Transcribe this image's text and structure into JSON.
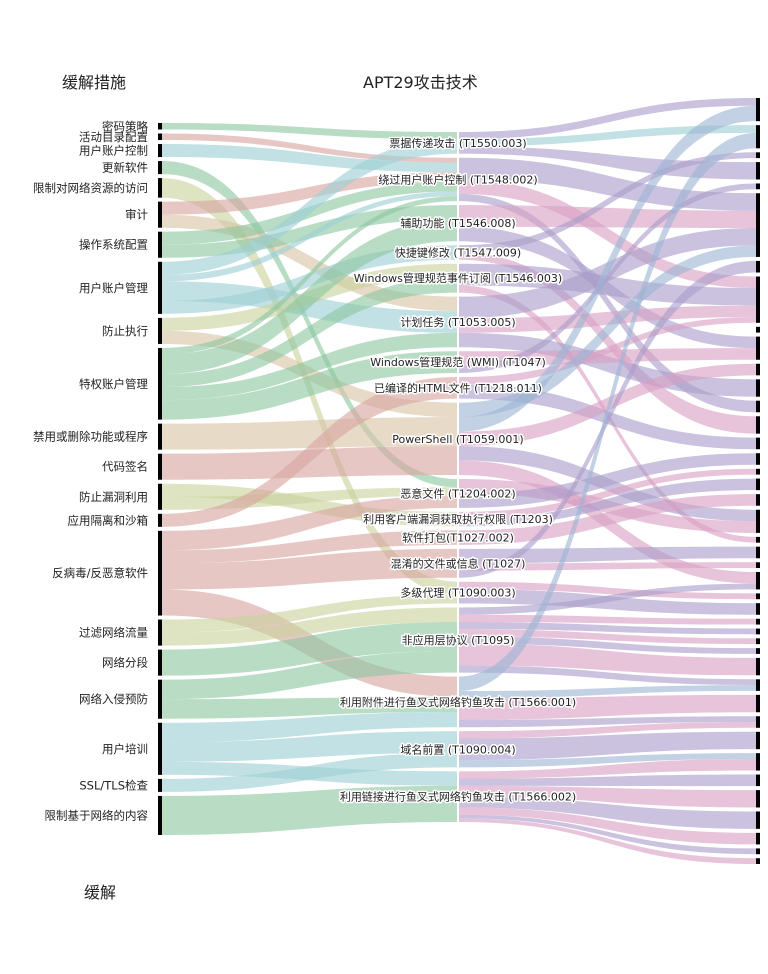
{
  "headers": {
    "mitigations": "缓解措施",
    "techniques": "APT29攻击技术",
    "footer": "缓解"
  },
  "colors": {
    "green": "#8cc7a0",
    "teal": "#9ccfd4",
    "tan": "#d9c4a4",
    "rose": "#d9a4a0",
    "olive": "#c9d29c",
    "purple": "#a99cca",
    "pink": "#d9a0c4",
    "steel": "#9cb4d4",
    "bar": "#000000"
  },
  "mitigations": [
    {
      "label": "密码策略",
      "weight": 1
    },
    {
      "label": "活动目录配置",
      "weight": 1
    },
    {
      "label": "用户账户控制",
      "weight": 2
    },
    {
      "label": "更新软件",
      "weight": 2
    },
    {
      "label": "限制对网络资源的访问",
      "weight": 3
    },
    {
      "label": "审计",
      "weight": 4
    },
    {
      "label": "操作系统配置",
      "weight": 4
    },
    {
      "label": "用户账户管理",
      "weight": 8
    },
    {
      "label": "防止执行",
      "weight": 4
    },
    {
      "label": "特权账户管理",
      "weight": 11
    },
    {
      "label": "禁用或删除功能或程序",
      "weight": 4
    },
    {
      "label": "代码签名",
      "weight": 4
    },
    {
      "label": "防止漏洞利用",
      "weight": 4
    },
    {
      "label": "应用隔离和沙箱",
      "weight": 2
    },
    {
      "label": "反病毒/反恶意软件",
      "weight": 13
    },
    {
      "label": "过滤网络流量",
      "weight": 4
    },
    {
      "label": "网络分段",
      "weight": 4
    },
    {
      "label": "网络入侵预防",
      "weight": 6
    },
    {
      "label": "用户培训",
      "weight": 8
    },
    {
      "label": "SSL/TLS检查",
      "weight": 2
    },
    {
      "label": "限制基于网络的内容",
      "weight": 6
    }
  ],
  "techniques": [
    {
      "label": "票据传递攻击 (T1550.003)",
      "weight": 3
    },
    {
      "label": "绕过用户账户控制 (T1548.002)",
      "weight": 6
    },
    {
      "label": "辅助功能 (T1546.008)",
      "weight": 5
    },
    {
      "label": "快捷键修改 (T1547.009)",
      "weight": 2
    },
    {
      "label": "Windows管理规范事件订阅 (T1546.003)",
      "weight": 4
    },
    {
      "label": "计划任务 (T1053.005)",
      "weight": 7
    },
    {
      "label": "Windows管理规范 (WMI) (T1047)",
      "weight": 3
    },
    {
      "label": "已编译的HTML文件 (T1218.011)",
      "weight": 3
    },
    {
      "label": "PowerShell (T1059.001)",
      "weight": 10
    },
    {
      "label": "恶意文件 (T1204.002)",
      "weight": 4
    },
    {
      "label": "利用客户端漏洞获取执行权限 (T1203)",
      "weight": 2
    },
    {
      "label": "软件打包(T1027.002)",
      "weight": 2
    },
    {
      "label": "混淆的文件或信息 (T1027)",
      "weight": 4
    },
    {
      "label": "多级代理 (T1090.003)",
      "weight": 3
    },
    {
      "label": "非应用层协议 (T1095)",
      "weight": 9
    },
    {
      "label": "利用附件进行鱼叉式网络钓鱼攻击 (T1566.001)",
      "weight": 7
    },
    {
      "label": "域名前置 (T1090.004)",
      "weight": 5
    },
    {
      "label": "利用链接进行鱼叉式网络钓鱼攻击 (T1566.002)",
      "weight": 7
    }
  ],
  "mitigation_links": [
    [
      0,
      0,
      1,
      "green"
    ],
    [
      1,
      1,
      1,
      "rose"
    ],
    [
      2,
      1,
      2,
      "teal"
    ],
    [
      3,
      9,
      2,
      "green"
    ],
    [
      4,
      13,
      3,
      "olive"
    ],
    [
      5,
      1,
      2,
      "rose"
    ],
    [
      5,
      5,
      2,
      "tan"
    ],
    [
      6,
      1,
      2,
      "green"
    ],
    [
      6,
      2,
      2,
      "green"
    ],
    [
      7,
      0,
      2,
      "teal"
    ],
    [
      7,
      1,
      1,
      "teal"
    ],
    [
      7,
      5,
      3,
      "teal"
    ],
    [
      7,
      3,
      2,
      "teal"
    ],
    [
      8,
      4,
      2,
      "olive"
    ],
    [
      8,
      8,
      2,
      "tan"
    ],
    [
      9,
      1,
      1,
      "green"
    ],
    [
      9,
      2,
      3,
      "green"
    ],
    [
      9,
      4,
      2,
      "green"
    ],
    [
      9,
      5,
      2,
      "green"
    ],
    [
      9,
      6,
      3,
      "green"
    ],
    [
      10,
      8,
      4,
      "tan"
    ],
    [
      11,
      8,
      4,
      "rose"
    ],
    [
      12,
      10,
      2,
      "olive"
    ],
    [
      12,
      9,
      2,
      "olive"
    ],
    [
      13,
      7,
      2,
      "rose"
    ],
    [
      14,
      9,
      3,
      "rose"
    ],
    [
      14,
      11,
      2,
      "rose"
    ],
    [
      14,
      12,
      4,
      "rose"
    ],
    [
      14,
      15,
      4,
      "rose"
    ],
    [
      15,
      13,
      2,
      "olive"
    ],
    [
      15,
      14,
      2,
      "olive"
    ],
    [
      16,
      14,
      4,
      "green"
    ],
    [
      17,
      14,
      3,
      "green"
    ],
    [
      17,
      15,
      3,
      "green"
    ],
    [
      18,
      15,
      3,
      "teal"
    ],
    [
      18,
      16,
      3,
      "teal"
    ],
    [
      18,
      17,
      2,
      "teal"
    ],
    [
      19,
      16,
      2,
      "teal"
    ],
    [
      20,
      17,
      5,
      "green"
    ]
  ],
  "effects": [
    {
      "weight": 4
    },
    {
      "weight": 4
    },
    {
      "weight": 1
    },
    {
      "weight": 3
    },
    {
      "weight": 1
    },
    {
      "weight": 11
    },
    {
      "weight": 2
    },
    {
      "weight": 8
    },
    {
      "weight": 1
    },
    {
      "weight": 4
    },
    {
      "weight": 2
    },
    {
      "weight": 3
    },
    {
      "weight": 2
    },
    {
      "weight": 3
    },
    {
      "weight": 2
    },
    {
      "weight": 2
    },
    {
      "weight": 1
    },
    {
      "weight": 2
    },
    {
      "weight": 2
    },
    {
      "weight": 4
    },
    {
      "weight": 1
    },
    {
      "weight": 2
    },
    {
      "weight": 1
    },
    {
      "weight": 3
    },
    {
      "weight": 1
    },
    {
      "weight": 2
    },
    {
      "weight": 1
    },
    {
      "weight": 1
    },
    {
      "weight": 1
    },
    {
      "weight": 1
    },
    {
      "weight": 3
    },
    {
      "weight": 2
    },
    {
      "weight": 3
    },
    {
      "weight": 2
    },
    {
      "weight": 3
    },
    {
      "weight": 3
    },
    {
      "weight": 2
    },
    {
      "weight": 3
    },
    {
      "weight": 3
    },
    {
      "weight": 2
    },
    {
      "weight": 1
    },
    {
      "weight": 1
    }
  ],
  "technique_links": [
    [
      0,
      0,
      1,
      "purple"
    ],
    [
      0,
      1,
      1,
      "teal"
    ],
    [
      0,
      3,
      1,
      "purple"
    ],
    [
      1,
      5,
      3,
      "purple"
    ],
    [
      1,
      7,
      2,
      "pink"
    ],
    [
      1,
      12,
      1,
      "purple"
    ],
    [
      2,
      5,
      3,
      "pink"
    ],
    [
      2,
      9,
      2,
      "purple"
    ],
    [
      3,
      2,
      1,
      "purple"
    ],
    [
      3,
      13,
      1,
      "pink"
    ],
    [
      4,
      7,
      3,
      "purple"
    ],
    [
      4,
      20,
      1,
      "pink"
    ],
    [
      5,
      5,
      3,
      "purple"
    ],
    [
      5,
      7,
      2,
      "pink"
    ],
    [
      5,
      11,
      2,
      "purple"
    ],
    [
      6,
      9,
      2,
      "pink"
    ],
    [
      6,
      4,
      1,
      "purple"
    ],
    [
      7,
      7,
      1,
      "pink"
    ],
    [
      7,
      14,
      2,
      "purple"
    ],
    [
      8,
      5,
      2,
      "steel"
    ],
    [
      8,
      0,
      2,
      "steel"
    ],
    [
      8,
      10,
      2,
      "pink"
    ],
    [
      8,
      19,
      2,
      "purple"
    ],
    [
      8,
      23,
      2,
      "pink"
    ],
    [
      9,
      19,
      2,
      "pink"
    ],
    [
      9,
      15,
      2,
      "purple"
    ],
    [
      10,
      16,
      1,
      "pink"
    ],
    [
      10,
      17,
      1,
      "purple"
    ],
    [
      11,
      18,
      2,
      "pink"
    ],
    [
      12,
      21,
      2,
      "purple"
    ],
    [
      12,
      22,
      1,
      "pink"
    ],
    [
      12,
      6,
      1,
      "purple"
    ],
    [
      13,
      24,
      1,
      "pink"
    ],
    [
      13,
      25,
      2,
      "purple"
    ],
    [
      14,
      23,
      1,
      "purple"
    ],
    [
      14,
      26,
      1,
      "pink"
    ],
    [
      14,
      27,
      1,
      "purple"
    ],
    [
      14,
      28,
      1,
      "pink"
    ],
    [
      14,
      29,
      1,
      "purple"
    ],
    [
      14,
      30,
      3,
      "pink"
    ],
    [
      14,
      31,
      1,
      "purple"
    ],
    [
      15,
      1,
      2,
      "steel"
    ],
    [
      15,
      31,
      1,
      "steel"
    ],
    [
      15,
      32,
      3,
      "pink"
    ],
    [
      15,
      33,
      1,
      "purple"
    ],
    [
      16,
      33,
      1,
      "pink"
    ],
    [
      16,
      34,
      3,
      "purple"
    ],
    [
      16,
      35,
      1,
      "steel"
    ],
    [
      17,
      35,
      2,
      "pink"
    ],
    [
      17,
      36,
      2,
      "purple"
    ],
    [
      17,
      37,
      3,
      "pink"
    ],
    [
      17,
      38,
      3,
      "purple"
    ],
    [
      17,
      39,
      2,
      "pink"
    ],
    [
      17,
      40,
      1,
      "purple"
    ],
    [
      17,
      41,
      1,
      "pink"
    ]
  ]
}
